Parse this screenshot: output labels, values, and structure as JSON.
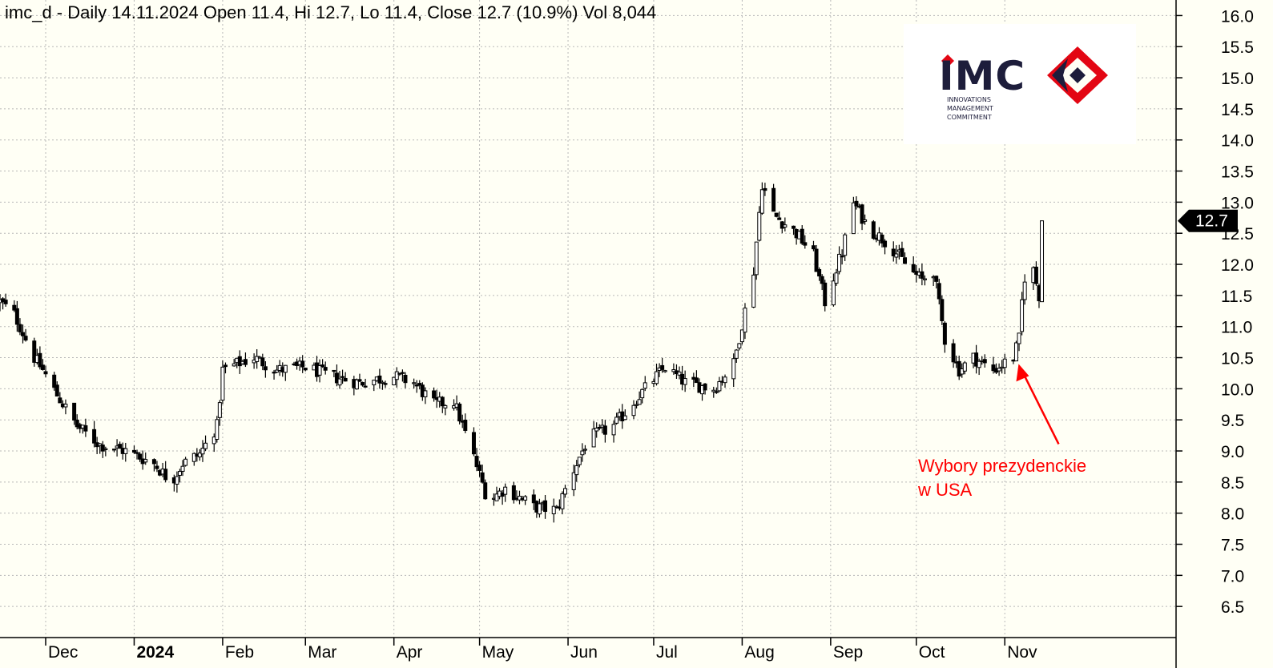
{
  "header": {
    "text": "imc_d - Daily 14.11.2024 Open 11.4, Hi 12.7, Lo 11.4, Close 12.7 (10.9%) Vol 8,044"
  },
  "logo": {
    "wordmark": "IMC",
    "tagline": [
      "INNOVATIONS",
      "MANAGEMENT",
      "COMMITMENT"
    ],
    "colors": {
      "text": "#1d1d3b",
      "accent": "#e30613"
    }
  },
  "chart_data": {
    "type": "ohlc",
    "symbol": "imc_d",
    "interval": "Daily",
    "y_ticks": [
      6.5,
      7.0,
      7.5,
      8.0,
      8.5,
      9.0,
      9.5,
      10.0,
      10.5,
      11.0,
      11.5,
      12.0,
      12.5,
      13.0,
      13.5,
      14.0,
      14.5,
      15.0,
      15.5,
      16.0
    ],
    "ylim": [
      6.0,
      16.25
    ],
    "grid": true,
    "x_labels": [
      {
        "label": "Dec",
        "date": "2023-12-01",
        "bold": false
      },
      {
        "label": "2024",
        "date": "2024-01-01",
        "bold": true
      },
      {
        "label": "Feb",
        "date": "2024-02-01",
        "bold": false
      },
      {
        "label": "Mar",
        "date": "2024-03-01",
        "bold": false
      },
      {
        "label": "Apr",
        "date": "2024-04-01",
        "bold": false
      },
      {
        "label": "May",
        "date": "2024-05-01",
        "bold": false
      },
      {
        "label": "Jun",
        "date": "2024-06-01",
        "bold": false
      },
      {
        "label": "Jul",
        "date": "2024-07-01",
        "bold": false
      },
      {
        "label": "Aug",
        "date": "2024-08-01",
        "bold": false
      },
      {
        "label": "Sep",
        "date": "2024-09-01",
        "bold": false
      },
      {
        "label": "Oct",
        "date": "2024-10-01",
        "bold": false
      },
      {
        "label": "Nov",
        "date": "2024-11-01",
        "bold": false
      }
    ],
    "xlim": [
      "2023-11-15",
      "2024-12-31"
    ],
    "price_path": [
      [
        "2023-11-15",
        11.4
      ],
      [
        "2023-11-20",
        11.2
      ],
      [
        "2023-11-27",
        10.5
      ],
      [
        "2023-11-30",
        10.3
      ],
      [
        "2023-12-05",
        9.9
      ],
      [
        "2023-12-12",
        9.4
      ],
      [
        "2023-12-20",
        9.1
      ],
      [
        "2023-12-29",
        9.0
      ],
      [
        "2024-01-08",
        8.8
      ],
      [
        "2024-01-14",
        8.5
      ],
      [
        "2024-01-18",
        8.8
      ],
      [
        "2024-01-24",
        8.95
      ],
      [
        "2024-01-30",
        9.4
      ],
      [
        "2024-02-01",
        10.3
      ],
      [
        "2024-02-06",
        10.4
      ],
      [
        "2024-02-12",
        10.5
      ],
      [
        "2024-02-20",
        10.3
      ],
      [
        "2024-03-01",
        10.35
      ],
      [
        "2024-03-10",
        10.2
      ],
      [
        "2024-03-20",
        10.1
      ],
      [
        "2024-04-01",
        10.2
      ],
      [
        "2024-04-08",
        10.1
      ],
      [
        "2024-04-15",
        9.75
      ],
      [
        "2024-04-22",
        9.8
      ],
      [
        "2024-04-29",
        8.9
      ],
      [
        "2024-05-04",
        8.2
      ],
      [
        "2024-05-10",
        8.4
      ],
      [
        "2024-05-20",
        8.1
      ],
      [
        "2024-05-28",
        8.05
      ],
      [
        "2024-06-03",
        8.7
      ],
      [
        "2024-06-08",
        9.2
      ],
      [
        "2024-06-17",
        9.4
      ],
      [
        "2024-06-28",
        10.0
      ],
      [
        "2024-07-05",
        10.35
      ],
      [
        "2024-07-12",
        10.1
      ],
      [
        "2024-07-22",
        10.0
      ],
      [
        "2024-07-29",
        10.4
      ],
      [
        "2024-08-05",
        11.9
      ],
      [
        "2024-08-08",
        13.3
      ],
      [
        "2024-08-12",
        12.8
      ],
      [
        "2024-08-20",
        12.5
      ],
      [
        "2024-08-26",
        12.15
      ],
      [
        "2024-08-30",
        11.4
      ],
      [
        "2024-09-05",
        12.2
      ],
      [
        "2024-09-09",
        13.0
      ],
      [
        "2024-09-14",
        12.6
      ],
      [
        "2024-09-22",
        12.3
      ],
      [
        "2024-09-29",
        11.9
      ],
      [
        "2024-10-03",
        11.75
      ],
      [
        "2024-10-07",
        11.9
      ],
      [
        "2024-10-11",
        10.8
      ],
      [
        "2024-10-16",
        10.3
      ],
      [
        "2024-10-21",
        10.5
      ],
      [
        "2024-10-28",
        10.3
      ],
      [
        "2024-11-04",
        10.5
      ],
      [
        "2024-11-06",
        10.8
      ],
      [
        "2024-11-07",
        11.4
      ],
      [
        "2024-11-08",
        11.8
      ],
      [
        "2024-11-11",
        11.9
      ],
      [
        "2024-11-13",
        11.5
      ],
      [
        "2024-11-14",
        12.7
      ]
    ],
    "last_bar": {
      "date": "2024-11-14",
      "open": 11.4,
      "high": 12.7,
      "low": 11.4,
      "close": 12.7,
      "change_pct": 10.9,
      "volume": 8044
    },
    "last_value_label": "12.7",
    "annotation": {
      "lines": [
        "Wybory prezydenckie",
        "w USA"
      ],
      "target_date": "2024-11-05",
      "target_price": 10.45,
      "color": "#ff0000"
    },
    "colors": {
      "bars": "#000000",
      "grid": "#b8b8b8",
      "background": "#fffff5"
    }
  }
}
